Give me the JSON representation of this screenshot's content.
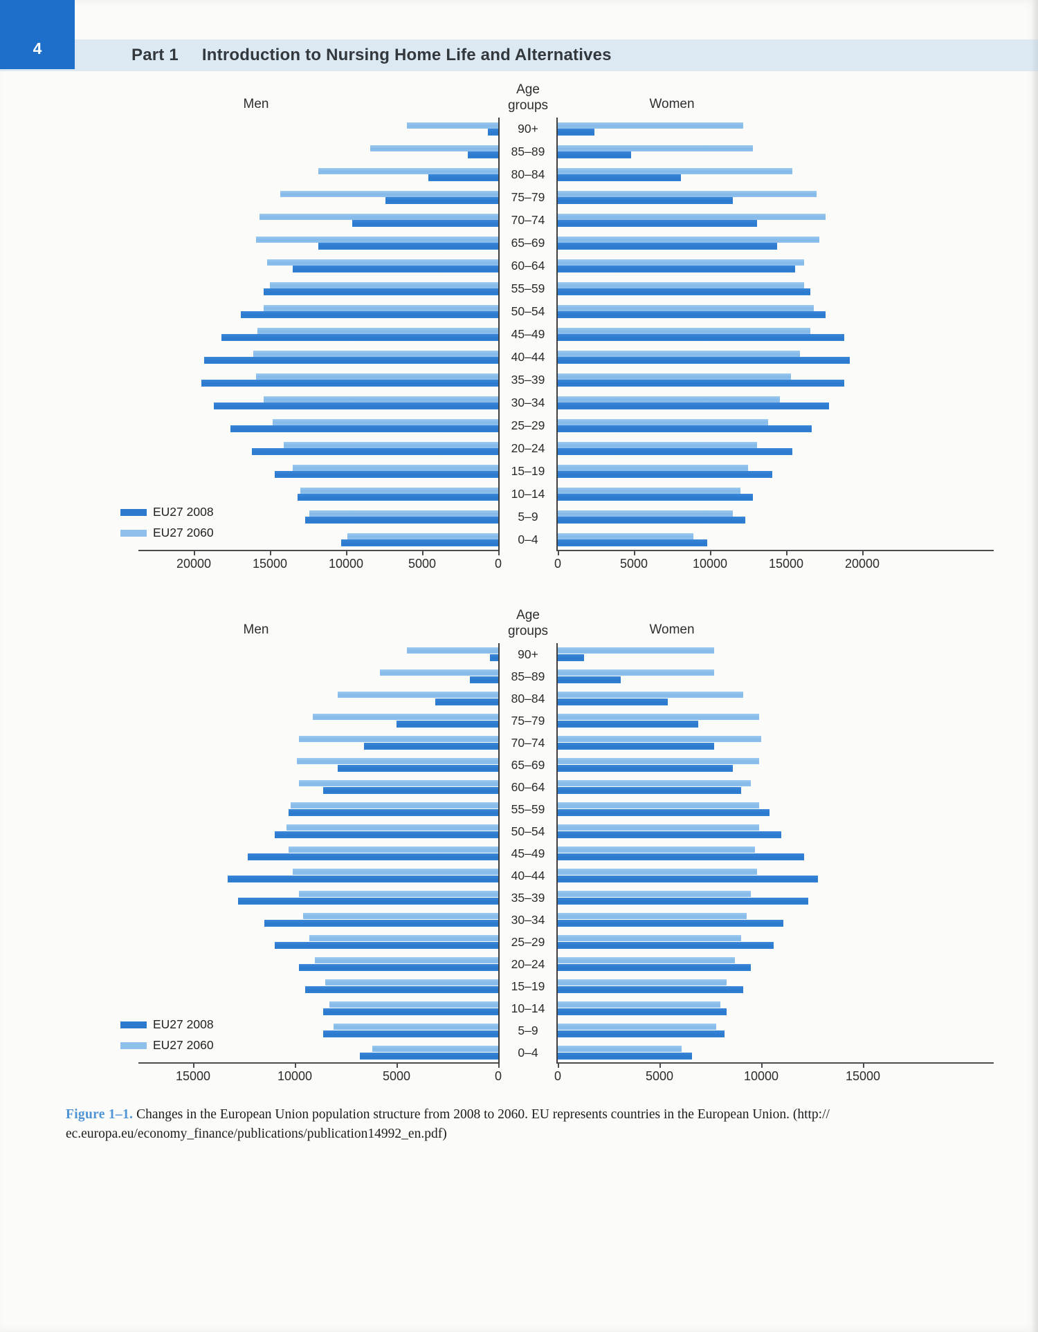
{
  "page": {
    "number": "4",
    "part_label": "Part 1",
    "part_title": "Introduction to Nursing Home Life and Alternatives"
  },
  "colors": {
    "series_2008": "#2b7ace",
    "series_2060": "#8fc0ec",
    "corner_tab_blue": "#1d6fc9",
    "header_band_blue": "#dce8f2",
    "caption_accent_blue": "#4e94d6",
    "axis_line": "#4c4c4c"
  },
  "caption": {
    "label": "Figure 1–1.",
    "line1": "Changes in the European Union population structure from 2008 to 2060. EU represents countries in the European Union. (http://",
    "line2": "ec.europa.eu/economy_finance/publications/publication14992_en.pdf)"
  },
  "chart_data": [
    {
      "type": "bar",
      "subtype": "population-pyramid",
      "title_left": "Men",
      "title_center": "Age groups",
      "title_right": "Women",
      "legend": [
        "EU27 2008",
        "EU27 2060"
      ],
      "legend_position": "bottom-left",
      "grid": false,
      "xlabel": "",
      "ylabel": "Age groups",
      "axis_max": 20000,
      "tick_step": 5000,
      "men_ticks": [
        "20000",
        "15000",
        "10000",
        "5000",
        "0"
      ],
      "women_ticks": [
        "0",
        "5000",
        "10000",
        "15000",
        "20000"
      ],
      "age_groups": [
        "90+",
        "85–89",
        "80–84",
        "75–79",
        "70–74",
        "65–69",
        "60–64",
        "55–59",
        "50–54",
        "45–49",
        "40–44",
        "35–39",
        "30–34",
        "25–29",
        "20–24",
        "15–19",
        "10–14",
        "5–9",
        "0–4"
      ],
      "series": [
        {
          "name": "EU27 2008",
          "men": [
            700,
            2000,
            4600,
            7400,
            9600,
            11800,
            13500,
            15400,
            16900,
            18200,
            19300,
            19500,
            18700,
            17600,
            16200,
            14700,
            13200,
            12700,
            10300
          ],
          "women": [
            2400,
            4800,
            8100,
            11500,
            13100,
            14400,
            15600,
            16600,
            17600,
            18800,
            19200,
            18800,
            17800,
            16700,
            15400,
            14100,
            12800,
            12300,
            9800
          ]
        },
        {
          "name": "EU27 2060",
          "men": [
            6000,
            8400,
            11800,
            14300,
            15700,
            15900,
            15200,
            15000,
            15400,
            15800,
            16100,
            15900,
            15400,
            14800,
            14100,
            13500,
            13000,
            12400,
            9900
          ],
          "women": [
            12200,
            12800,
            15400,
            17000,
            17600,
            17200,
            16200,
            16200,
            16800,
            16600,
            15900,
            15300,
            14600,
            13800,
            13100,
            12500,
            12000,
            11500,
            8900
          ]
        }
      ]
    },
    {
      "type": "bar",
      "subtype": "population-pyramid",
      "title_left": "Men",
      "title_center": "Age groups",
      "title_right": "Women",
      "legend": [
        "EU27 2008",
        "EU27 2060"
      ],
      "legend_position": "bottom-left",
      "grid": false,
      "xlabel": "",
      "ylabel": "Age groups",
      "axis_max": 15000,
      "tick_step": 5000,
      "men_ticks": [
        "15000",
        "10000",
        "5000",
        "0"
      ],
      "women_ticks": [
        "0",
        "5000",
        "10000",
        "15000"
      ],
      "age_groups": [
        "90+",
        "85–89",
        "80–84",
        "75–79",
        "70–74",
        "65–69",
        "60–64",
        "55–59",
        "50–54",
        "45–49",
        "40–44",
        "35–39",
        "30–34",
        "25–29",
        "20–24",
        "15–19",
        "10–14",
        "5–9",
        "0–4"
      ],
      "series": [
        {
          "name": "EU27 2008",
          "men": [
            400,
            1400,
            3100,
            5000,
            6600,
            7900,
            8600,
            10300,
            11000,
            12300,
            13300,
            12800,
            11500,
            11000,
            9800,
            9500,
            8600,
            8600,
            6800
          ],
          "women": [
            1300,
            3100,
            5400,
            6900,
            7700,
            8600,
            9000,
            10400,
            11000,
            12100,
            12800,
            12300,
            11100,
            10600,
            9500,
            9100,
            8300,
            8200,
            6600
          ]
        },
        {
          "name": "EU27 2060",
          "men": [
            4500,
            5800,
            7900,
            9100,
            9800,
            9900,
            9800,
            10200,
            10400,
            10300,
            10100,
            9800,
            9600,
            9300,
            9000,
            8500,
            8300,
            8100,
            6200
          ],
          "women": [
            7700,
            7700,
            9100,
            9900,
            10000,
            9900,
            9500,
            9900,
            9900,
            9700,
            9800,
            9500,
            9300,
            9000,
            8700,
            8300,
            8000,
            7800,
            6100
          ]
        }
      ]
    }
  ]
}
